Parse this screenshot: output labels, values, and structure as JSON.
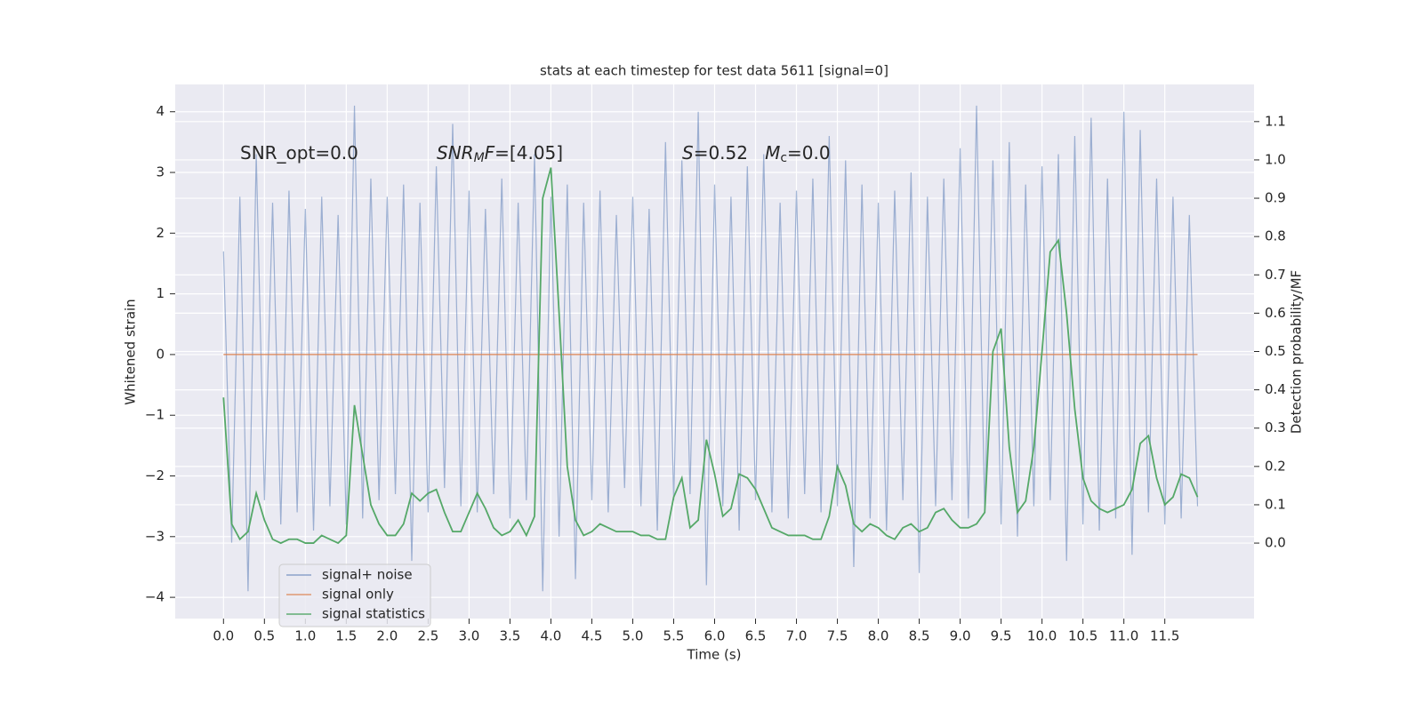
{
  "chart_data": {
    "type": "line",
    "title": "stats at each timestep for test data 5611 [signal=0]",
    "x_label": "Time (s)",
    "y_label": "Whitened strain",
    "y2_label": "Detection probability/MF",
    "annotations": [
      [
        {
          "text": "SNR_opt=0.0",
          "italic": false,
          "sub": false
        }
      ],
      [
        {
          "text": "SNR",
          "italic": true,
          "sub": false
        },
        {
          "text": "M",
          "italic": true,
          "sub": true
        },
        {
          "text": "F",
          "italic": true,
          "sub": false
        },
        {
          "text": "=[4.05]",
          "italic": false,
          "sub": false
        }
      ],
      [
        {
          "text": "S",
          "italic": true,
          "sub": false
        },
        {
          "text": "=0.52   ",
          "italic": false,
          "sub": false
        },
        {
          "text": "M",
          "italic": true,
          "sub": false
        },
        {
          "text": "c",
          "italic": false,
          "sub": true
        },
        {
          "text": "=0.0",
          "italic": false,
          "sub": false
        }
      ]
    ],
    "x": [
      0,
      0.1,
      0.2,
      0.3,
      0.4,
      0.5,
      0.6,
      0.7,
      0.8,
      0.9,
      1.0,
      1.1,
      1.2,
      1.3,
      1.4,
      1.5,
      1.6,
      1.7,
      1.8,
      1.9,
      2.0,
      2.1,
      2.2,
      2.3,
      2.4,
      2.5,
      2.6,
      2.7,
      2.8,
      2.9,
      3.0,
      3.1,
      3.2,
      3.3,
      3.4,
      3.5,
      3.6,
      3.7,
      3.8,
      3.9,
      4.0,
      4.1,
      4.2,
      4.3,
      4.4,
      4.5,
      4.6,
      4.7,
      4.8,
      4.9,
      5.0,
      5.1,
      5.2,
      5.3,
      5.4,
      5.5,
      5.6,
      5.7,
      5.8,
      5.9,
      6.0,
      6.1,
      6.2,
      6.3,
      6.4,
      6.5,
      6.6,
      6.7,
      6.8,
      6.9,
      7.0,
      7.1,
      7.2,
      7.3,
      7.4,
      7.5,
      7.6,
      7.7,
      7.8,
      7.9,
      8.0,
      8.1,
      8.2,
      8.3,
      8.4,
      8.5,
      8.6,
      8.7,
      8.8,
      8.9,
      9.0,
      9.1,
      9.2,
      9.3,
      9.4,
      9.5,
      9.6,
      9.7,
      9.8,
      9.9,
      10.0,
      10.1,
      10.2,
      10.3,
      10.4,
      10.5,
      10.6,
      10.7,
      10.8,
      10.9,
      11.0,
      11.1,
      11.2,
      11.3,
      11.4,
      11.5,
      11.6,
      11.7,
      11.8,
      11.9
    ],
    "series": [
      {
        "name": "signal+ noise",
        "color": "#4c72b0",
        "opacity": 0.5,
        "values": [
          1.7,
          -3.1,
          2.6,
          -3.9,
          3.3,
          -2.4,
          2.5,
          -2.8,
          2.7,
          -2.6,
          2.4,
          -2.9,
          2.6,
          -2.5,
          2.3,
          -2.8,
          4.1,
          -2.7,
          2.9,
          -2.4,
          2.6,
          -2.3,
          2.8,
          -3.4,
          2.5,
          -2.6,
          3.1,
          -2.2,
          3.8,
          -2.5,
          2.7,
          -2.6,
          2.4,
          -2.3,
          2.9,
          -2.7,
          2.5,
          -2.4,
          3.3,
          -3.9,
          2.6,
          -3.0,
          2.8,
          -3.7,
          2.5,
          -2.4,
          2.7,
          -2.6,
          2.3,
          -2.2,
          2.6,
          -2.5,
          2.4,
          -2.9,
          3.5,
          -2.4,
          3.2,
          -2.3,
          4.0,
          -3.8,
          2.8,
          -2.5,
          2.6,
          -2.9,
          3.1,
          -2.4,
          3.3,
          -2.6,
          2.5,
          -2.7,
          2.7,
          -2.3,
          2.9,
          -2.6,
          3.6,
          -2.5,
          3.2,
          -3.5,
          2.8,
          -2.7,
          2.5,
          -2.9,
          2.7,
          -2.4,
          3.0,
          -3.6,
          2.6,
          -2.5,
          2.9,
          -2.4,
          3.4,
          -2.7,
          4.1,
          -2.6,
          3.2,
          -2.8,
          3.5,
          -3.0,
          2.8,
          -2.5,
          3.1,
          -2.4,
          3.3,
          -3.4,
          3.6,
          -2.8,
          3.9,
          -2.9,
          2.9,
          -2.7,
          4.0,
          -3.3,
          3.7,
          -2.6,
          2.9,
          -2.8,
          2.6,
          -2.7,
          2.3,
          -2.5
        ]
      },
      {
        "name": "signal only",
        "color": "#dd8452",
        "opacity": 1,
        "values": [
          0,
          0,
          0,
          0,
          0,
          0,
          0,
          0,
          0,
          0,
          0,
          0,
          0,
          0,
          0,
          0,
          0,
          0,
          0,
          0,
          0,
          0,
          0,
          0,
          0,
          0,
          0,
          0,
          0,
          0,
          0,
          0,
          0,
          0,
          0,
          0,
          0,
          0,
          0,
          0,
          0,
          0,
          0,
          0,
          0,
          0,
          0,
          0,
          0,
          0,
          0,
          0,
          0,
          0,
          0,
          0,
          0,
          0,
          0,
          0,
          0,
          0,
          0,
          0,
          0,
          0,
          0,
          0,
          0,
          0,
          0,
          0,
          0,
          0,
          0,
          0,
          0,
          0,
          0,
          0,
          0,
          0,
          0,
          0,
          0,
          0,
          0,
          0,
          0,
          0,
          0,
          0,
          0,
          0,
          0,
          0,
          0,
          0,
          0,
          0,
          0,
          0,
          0,
          0,
          0,
          0,
          0,
          0,
          0,
          0,
          0,
          0,
          0,
          0,
          0,
          0,
          0,
          0,
          0,
          0
        ]
      },
      {
        "name": "signal statistics",
        "color": "#55a868",
        "opacity": 1,
        "axis": "y2",
        "values": [
          0.38,
          0.05,
          0.01,
          0.03,
          0.13,
          0.06,
          0.01,
          0.0,
          0.01,
          0.01,
          0.0,
          0.0,
          0.02,
          0.01,
          0.0,
          0.02,
          0.36,
          0.23,
          0.1,
          0.05,
          0.02,
          0.02,
          0.05,
          0.13,
          0.11,
          0.13,
          0.14,
          0.08,
          0.03,
          0.03,
          0.08,
          0.13,
          0.09,
          0.04,
          0.02,
          0.03,
          0.06,
          0.02,
          0.07,
          0.9,
          0.98,
          0.6,
          0.2,
          0.06,
          0.02,
          0.03,
          0.05,
          0.04,
          0.03,
          0.03,
          0.03,
          0.02,
          0.02,
          0.01,
          0.01,
          0.12,
          0.17,
          0.04,
          0.06,
          0.27,
          0.18,
          0.07,
          0.09,
          0.18,
          0.17,
          0.14,
          0.09,
          0.04,
          0.03,
          0.02,
          0.02,
          0.02,
          0.01,
          0.01,
          0.07,
          0.2,
          0.15,
          0.05,
          0.03,
          0.05,
          0.04,
          0.02,
          0.01,
          0.04,
          0.05,
          0.03,
          0.04,
          0.08,
          0.09,
          0.06,
          0.04,
          0.04,
          0.05,
          0.08,
          0.5,
          0.56,
          0.25,
          0.08,
          0.11,
          0.25,
          0.5,
          0.76,
          0.79,
          0.6,
          0.35,
          0.17,
          0.11,
          0.09,
          0.08,
          0.09,
          0.1,
          0.14,
          0.26,
          0.28,
          0.17,
          0.1,
          0.12,
          0.18,
          0.17,
          0.12
        ]
      }
    ],
    "xlim": [
      -0.59,
      12.59
    ],
    "xticks": [
      {
        "value": 0,
        "label": "0.0"
      },
      {
        "value": 0.5,
        "label": "0.5"
      },
      {
        "value": 1,
        "label": "1.0"
      },
      {
        "value": 1.5,
        "label": "1.5"
      },
      {
        "value": 2,
        "label": "2.0"
      },
      {
        "value": 2.5,
        "label": "2.5"
      },
      {
        "value": 3,
        "label": "3.0"
      },
      {
        "value": 3.5,
        "label": "3.5"
      },
      {
        "value": 4,
        "label": "4.0"
      },
      {
        "value": 4.5,
        "label": "4.5"
      },
      {
        "value": 5,
        "label": "5.0"
      },
      {
        "value": 5.5,
        "label": "5.5"
      },
      {
        "value": 6,
        "label": "6.0"
      },
      {
        "value": 6.5,
        "label": "6.5"
      },
      {
        "value": 7,
        "label": "7.0"
      },
      {
        "value": 7.5,
        "label": "7.5"
      },
      {
        "value": 8,
        "label": "8.0"
      },
      {
        "value": 8.5,
        "label": "8.5"
      },
      {
        "value": 9,
        "label": "9.0"
      },
      {
        "value": 9.5,
        "label": "9.5"
      },
      {
        "value": 10,
        "label": "10.0"
      },
      {
        "value": 10.5,
        "label": "10.5"
      },
      {
        "value": 11,
        "label": "11.0"
      },
      {
        "value": 11.5,
        "label": "11.5"
      }
    ],
    "ylim": [
      -4.35,
      4.45
    ],
    "yticks": [
      {
        "value": -4,
        "label": "−4"
      },
      {
        "value": -3,
        "label": "−3"
      },
      {
        "value": -2,
        "label": "−2"
      },
      {
        "value": -1,
        "label": "−1"
      },
      0,
      1,
      2,
      3,
      4
    ],
    "y2lim": [
      -0.197,
      1.197
    ],
    "y2ticks": [
      {
        "value": 0,
        "label": "0.0"
      },
      {
        "value": 0.1,
        "label": "0.1"
      },
      {
        "value": 0.2,
        "label": "0.2"
      },
      {
        "value": 0.3,
        "label": "0.3"
      },
      {
        "value": 0.4,
        "label": "0.4"
      },
      {
        "value": 0.5,
        "label": "0.5"
      },
      {
        "value": 0.6,
        "label": "0.6"
      },
      {
        "value": 0.7,
        "label": "0.7"
      },
      {
        "value": 0.8,
        "label": "0.8"
      },
      {
        "value": 0.9,
        "label": "0.9"
      },
      {
        "value": 1,
        "label": "1.0"
      },
      {
        "value": 1.1,
        "label": "1.1"
      }
    ],
    "grid": true,
    "background": "#eaeaf2",
    "legend": "lower left"
  }
}
